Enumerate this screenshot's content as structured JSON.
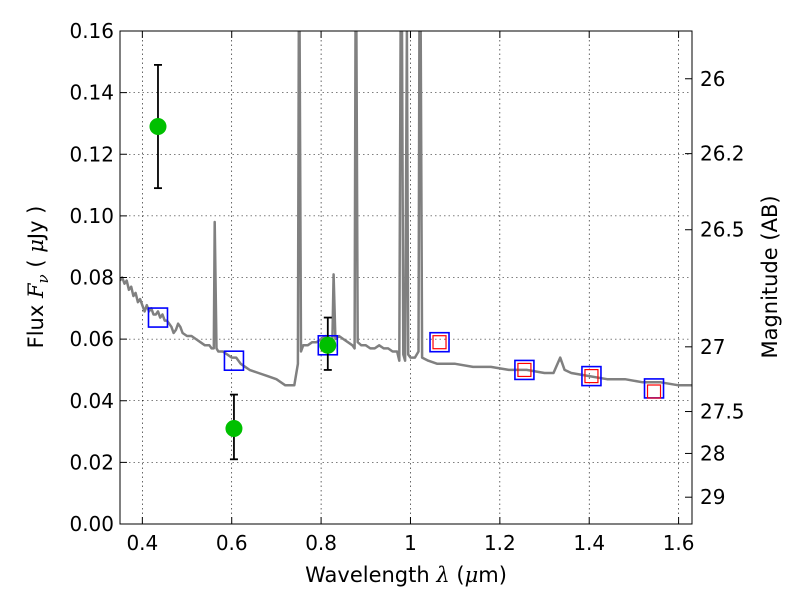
{
  "chart_data": {
    "type": "scatter",
    "xlabel_prefix": "Wavelength",
    "xlabel_symbol": "λ",
    "xlabel_unit_open": "(",
    "xlabel_unit_mu": "μ",
    "xlabel_unit_close": "m)",
    "ylabel_prefix": "Flux",
    "ylabel_symbol": "F",
    "ylabel_sub": "ν",
    "ylabel_unit_open": "(",
    "ylabel_unit_mu": "μ",
    "ylabel_unit_close": "Jy )",
    "y2label": "Magnitude (AB)",
    "xlim": [
      0.35,
      1.63
    ],
    "ylim": [
      0.0,
      0.16
    ],
    "grid": true,
    "x_ticks": [
      {
        "value": 0.4,
        "label": "0.4"
      },
      {
        "value": 0.6,
        "label": "0.6"
      },
      {
        "value": 0.8,
        "label": "0.8"
      },
      {
        "value": 1.0,
        "label": "1"
      },
      {
        "value": 1.2,
        "label": "1.2"
      },
      {
        "value": 1.4,
        "label": "1.4"
      },
      {
        "value": 1.6,
        "label": "1.6"
      }
    ],
    "y_ticks": [
      {
        "value": 0.0,
        "label": "0.00"
      },
      {
        "value": 0.02,
        "label": "0.02"
      },
      {
        "value": 0.04,
        "label": "0.04"
      },
      {
        "value": 0.06,
        "label": "0.06"
      },
      {
        "value": 0.08,
        "label": "0.08"
      },
      {
        "value": 0.1,
        "label": "0.10"
      },
      {
        "value": 0.12,
        "label": "0.12"
      },
      {
        "value": 0.14,
        "label": "0.14"
      },
      {
        "value": 0.16,
        "label": "0.16"
      }
    ],
    "y2_ticks": [
      {
        "flux": 0.1445,
        "label": "26"
      },
      {
        "flux": 0.1202,
        "label": "26.2"
      },
      {
        "flux": 0.0955,
        "label": "26.5"
      },
      {
        "flux": 0.0575,
        "label": "27"
      },
      {
        "flux": 0.0365,
        "label": "27.5"
      },
      {
        "flux": 0.0229,
        "label": "28"
      },
      {
        "flux": 0.0087,
        "label": "29"
      }
    ],
    "series": [
      {
        "kind": "sed-model",
        "color": "#808080",
        "points": [
          [
            0.35,
            0.079
          ],
          [
            0.355,
            0.08
          ],
          [
            0.36,
            0.078
          ],
          [
            0.365,
            0.079
          ],
          [
            0.37,
            0.076
          ],
          [
            0.375,
            0.077
          ],
          [
            0.38,
            0.074
          ],
          [
            0.385,
            0.075
          ],
          [
            0.39,
            0.072
          ],
          [
            0.395,
            0.073
          ],
          [
            0.4,
            0.071
          ],
          [
            0.405,
            0.069
          ],
          [
            0.41,
            0.071
          ],
          [
            0.415,
            0.069
          ],
          [
            0.42,
            0.07
          ],
          [
            0.425,
            0.068
          ],
          [
            0.43,
            0.068
          ],
          [
            0.435,
            0.069
          ],
          [
            0.44,
            0.067
          ],
          [
            0.445,
            0.068
          ],
          [
            0.45,
            0.066
          ],
          [
            0.455,
            0.066
          ],
          [
            0.46,
            0.065
          ],
          [
            0.465,
            0.064
          ],
          [
            0.47,
            0.062
          ],
          [
            0.475,
            0.063
          ],
          [
            0.48,
            0.065
          ],
          [
            0.485,
            0.064
          ],
          [
            0.49,
            0.062
          ],
          [
            0.5,
            0.061
          ],
          [
            0.51,
            0.061
          ],
          [
            0.52,
            0.06
          ],
          [
            0.53,
            0.059
          ],
          [
            0.54,
            0.058
          ],
          [
            0.55,
            0.058
          ],
          [
            0.555,
            0.057
          ],
          [
            0.56,
            0.057
          ],
          [
            0.562,
            0.098
          ],
          [
            0.566,
            0.057
          ],
          [
            0.57,
            0.056
          ],
          [
            0.58,
            0.056
          ],
          [
            0.59,
            0.055
          ],
          [
            0.6,
            0.054
          ],
          [
            0.61,
            0.054
          ],
          [
            0.62,
            0.052
          ],
          [
            0.64,
            0.05
          ],
          [
            0.66,
            0.049
          ],
          [
            0.68,
            0.048
          ],
          [
            0.7,
            0.047
          ],
          [
            0.72,
            0.045
          ],
          [
            0.74,
            0.045
          ],
          [
            0.748,
            0.052
          ],
          [
            0.75,
            0.16
          ],
          [
            0.752,
            0.16
          ],
          [
            0.755,
            0.056
          ],
          [
            0.76,
            0.058
          ],
          [
            0.77,
            0.058
          ],
          [
            0.78,
            0.059
          ],
          [
            0.79,
            0.059
          ],
          [
            0.8,
            0.06
          ],
          [
            0.81,
            0.061
          ],
          [
            0.82,
            0.06
          ],
          [
            0.825,
            0.058
          ],
          [
            0.828,
            0.081
          ],
          [
            0.832,
            0.06
          ],
          [
            0.84,
            0.061
          ],
          [
            0.85,
            0.06
          ],
          [
            0.86,
            0.059
          ],
          [
            0.87,
            0.058
          ],
          [
            0.875,
            0.057
          ],
          [
            0.877,
            0.16
          ],
          [
            0.879,
            0.16
          ],
          [
            0.882,
            0.059
          ],
          [
            0.89,
            0.058
          ],
          [
            0.9,
            0.058
          ],
          [
            0.91,
            0.057
          ],
          [
            0.92,
            0.057
          ],
          [
            0.93,
            0.058
          ],
          [
            0.94,
            0.057
          ],
          [
            0.95,
            0.057
          ],
          [
            0.96,
            0.056
          ],
          [
            0.97,
            0.056
          ],
          [
            0.975,
            0.053
          ],
          [
            0.978,
            0.16
          ],
          [
            0.981,
            0.16
          ],
          [
            0.984,
            0.055
          ],
          [
            0.988,
            0.053
          ],
          [
            0.992,
            0.16
          ],
          [
            0.995,
            0.055
          ],
          [
            1.0,
            0.054
          ],
          [
            1.01,
            0.054
          ],
          [
            1.018,
            0.056
          ],
          [
            1.02,
            0.16
          ],
          [
            1.023,
            0.16
          ],
          [
            1.026,
            0.054
          ],
          [
            1.04,
            0.053
          ],
          [
            1.06,
            0.052
          ],
          [
            1.08,
            0.052
          ],
          [
            1.1,
            0.052
          ],
          [
            1.14,
            0.051
          ],
          [
            1.18,
            0.051
          ],
          [
            1.22,
            0.05
          ],
          [
            1.26,
            0.05
          ],
          [
            1.3,
            0.049
          ],
          [
            1.32,
            0.049
          ],
          [
            1.335,
            0.054
          ],
          [
            1.345,
            0.05
          ],
          [
            1.36,
            0.049
          ],
          [
            1.4,
            0.048
          ],
          [
            1.44,
            0.047
          ],
          [
            1.48,
            0.047
          ],
          [
            1.52,
            0.046
          ],
          [
            1.56,
            0.046
          ],
          [
            1.6,
            0.045
          ],
          [
            1.63,
            0.045
          ]
        ]
      },
      {
        "kind": "model-band-flux",
        "color": "#0000ff",
        "points": [
          [
            0.435,
            0.067
          ],
          [
            0.605,
            0.053
          ],
          [
            0.815,
            0.058
          ],
          [
            1.065,
            0.059
          ],
          [
            1.255,
            0.05
          ],
          [
            1.405,
            0.048
          ],
          [
            1.545,
            0.044
          ]
        ]
      },
      {
        "kind": "photometry-nir",
        "color": "#ff0000",
        "points": [
          [
            1.065,
            0.059
          ],
          [
            1.255,
            0.05
          ],
          [
            1.405,
            0.048
          ],
          [
            1.545,
            0.043
          ]
        ]
      },
      {
        "kind": "photometry-optical",
        "color": "#00c000",
        "errorbar_color": "#000000",
        "points": [
          {
            "x": 0.435,
            "y": 0.129,
            "ylow": 0.109,
            "yhigh": 0.149
          },
          {
            "x": 0.605,
            "y": 0.031,
            "ylow": 0.021,
            "yhigh": 0.042
          },
          {
            "x": 0.815,
            "y": 0.058,
            "ylow": 0.05,
            "yhigh": 0.067
          }
        ]
      }
    ]
  }
}
